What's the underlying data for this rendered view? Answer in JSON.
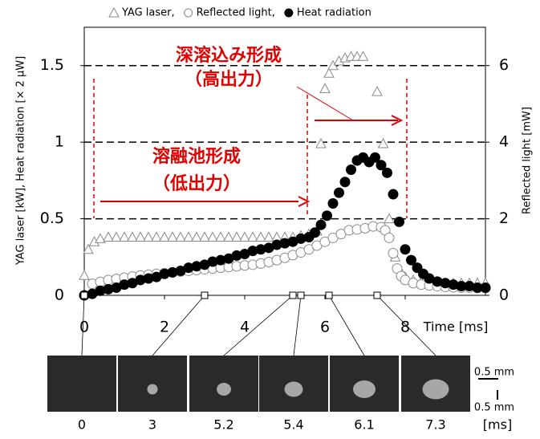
{
  "chart_data": {
    "type": "scatter",
    "legend_separator": ",",
    "x_label": "Time [ms]",
    "y_label": "YAG laser [kW], Heat radiation [× 2 μW]",
    "y2_label": "Reflected light [mW]",
    "xlim": [
      0,
      10
    ],
    "xticks": [
      0,
      2,
      4,
      6,
      8
    ],
    "ylim": [
      0,
      1.75
    ],
    "yticks": [
      0,
      0.5,
      1,
      1.5
    ],
    "y2lim": [
      0,
      7
    ],
    "y2ticks": [
      0,
      2,
      4,
      6
    ],
    "grid": true,
    "series": [
      {
        "name": "YAG laser",
        "marker": "triangle",
        "color": "#888888",
        "x": [
          0,
          0.1,
          0.25,
          0.4,
          0.6,
          0.8,
          1.0,
          1.2,
          1.4,
          1.6,
          1.8,
          2.0,
          2.2,
          2.4,
          2.6,
          2.8,
          3.0,
          3.2,
          3.4,
          3.6,
          3.8,
          4.0,
          4.2,
          4.4,
          4.6,
          4.8,
          5.0,
          5.2,
          5.4,
          5.6,
          5.8,
          5.9,
          6.0,
          6.1,
          6.2,
          6.35,
          6.5,
          6.65,
          6.8,
          6.95,
          7.3,
          7.45,
          7.6,
          7.75,
          7.9,
          8.0,
          8.2,
          8.4,
          8.6,
          8.8,
          9.0,
          9.2,
          9.4,
          9.6,
          9.8,
          10.0
        ],
        "values": [
          0.13,
          0.3,
          0.35,
          0.37,
          0.38,
          0.38,
          0.38,
          0.38,
          0.38,
          0.38,
          0.38,
          0.38,
          0.38,
          0.38,
          0.38,
          0.38,
          0.38,
          0.38,
          0.38,
          0.38,
          0.38,
          0.38,
          0.38,
          0.38,
          0.38,
          0.38,
          0.38,
          0.38,
          0.39,
          0.4,
          0.42,
          0.99,
          1.35,
          1.45,
          1.5,
          1.53,
          1.55,
          1.56,
          1.56,
          1.56,
          1.33,
          0.99,
          0.5,
          0.25,
          0.15,
          0.12,
          0.1,
          0.09,
          0.09,
          0.09,
          0.08,
          0.08,
          0.08,
          0.08,
          0.08,
          0.08
        ]
      },
      {
        "name": "Reflected light",
        "marker": "circle-open",
        "color": "#888888",
        "axis": "y2",
        "x": [
          0.2,
          0.4,
          0.6,
          0.8,
          1.0,
          1.2,
          1.4,
          1.6,
          1.8,
          2.0,
          2.2,
          2.4,
          2.6,
          2.8,
          3.0,
          3.2,
          3.4,
          3.6,
          3.8,
          4.0,
          4.2,
          4.4,
          4.6,
          4.8,
          5.0,
          5.2,
          5.4,
          5.6,
          5.8,
          6.0,
          6.2,
          6.4,
          6.6,
          6.8,
          7.0,
          7.2,
          7.4,
          7.5,
          7.6,
          7.7,
          7.8,
          7.9,
          8.0,
          8.2,
          8.4,
          8.6,
          8.8,
          9.0,
          9.2,
          9.4,
          9.6,
          9.8,
          10.0
        ],
        "values": [
          0.3,
          0.35,
          0.4,
          0.43,
          0.46,
          0.49,
          0.52,
          0.54,
          0.56,
          0.58,
          0.6,
          0.62,
          0.64,
          0.66,
          0.68,
          0.7,
          0.72,
          0.74,
          0.76,
          0.78,
          0.8,
          0.83,
          0.87,
          0.92,
          0.98,
          1.05,
          1.12,
          1.2,
          1.3,
          1.4,
          1.5,
          1.6,
          1.7,
          1.72,
          1.75,
          1.8,
          1.78,
          1.7,
          1.5,
          1.1,
          0.7,
          0.5,
          0.4,
          0.32,
          0.28,
          0.26,
          0.24,
          0.22,
          0.21,
          0.2,
          0.2,
          0.19,
          0.19
        ]
      },
      {
        "name": "Heat radiation",
        "marker": "circle-filled",
        "color": "#000000",
        "x": [
          0,
          0.2,
          0.4,
          0.6,
          0.8,
          1.0,
          1.2,
          1.4,
          1.6,
          1.8,
          2.0,
          2.2,
          2.4,
          2.6,
          2.8,
          3.0,
          3.2,
          3.4,
          3.6,
          3.8,
          4.0,
          4.2,
          4.4,
          4.6,
          4.8,
          5.0,
          5.2,
          5.4,
          5.6,
          5.75,
          5.9,
          6.05,
          6.2,
          6.35,
          6.5,
          6.65,
          6.8,
          6.95,
          7.1,
          7.25,
          7.4,
          7.55,
          7.7,
          7.85,
          8.0,
          8.15,
          8.3,
          8.45,
          8.6,
          8.8,
          9.0,
          9.2,
          9.4,
          9.6,
          9.8,
          10.0
        ],
        "values": [
          0,
          0.01,
          0.03,
          0.04,
          0.05,
          0.07,
          0.08,
          0.1,
          0.11,
          0.12,
          0.14,
          0.15,
          0.16,
          0.18,
          0.19,
          0.2,
          0.22,
          0.23,
          0.24,
          0.26,
          0.27,
          0.29,
          0.3,
          0.31,
          0.33,
          0.34,
          0.35,
          0.37,
          0.38,
          0.41,
          0.46,
          0.52,
          0.6,
          0.67,
          0.74,
          0.82,
          0.88,
          0.9,
          0.87,
          0.9,
          0.85,
          0.8,
          0.66,
          0.48,
          0.3,
          0.23,
          0.18,
          0.14,
          0.11,
          0.09,
          0.08,
          0.07,
          0.06,
          0.06,
          0.05,
          0.05
        ]
      }
    ],
    "annotations": [
      "深溶込み形成",
      "（高出力）",
      "溶融池形成",
      "（低出力）"
    ],
    "frames": {
      "times": [
        0,
        3,
        5.2,
        5.4,
        6.1,
        7.3
      ],
      "unit": "[ms]",
      "scale_label": "0.5 mm"
    }
  }
}
